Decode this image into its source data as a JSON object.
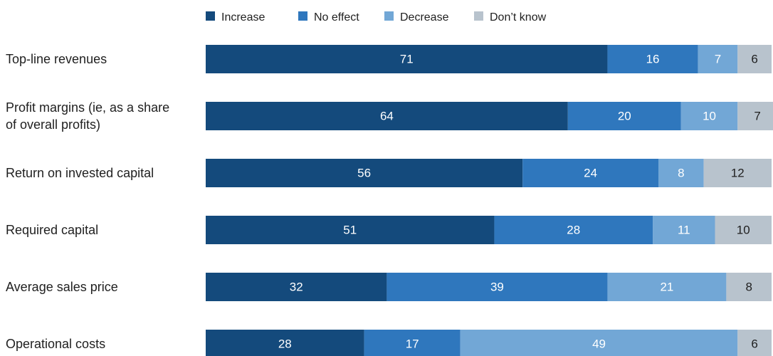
{
  "chart_data": {
    "type": "bar",
    "orientation": "horizontal",
    "stacked": true,
    "legend_position": "top",
    "categories": [
      [
        "Top-line revenues"
      ],
      [
        "Profit margins (ie, as a share",
        "of overall profits)"
      ],
      [
        "Return on invested capital"
      ],
      [
        "Required capital"
      ],
      [
        "Average sales price"
      ],
      [
        "Operational costs"
      ]
    ],
    "series": [
      {
        "name": "Increase",
        "color": "#144a7c",
        "label_color": "#ffffff",
        "values": [
          71,
          64,
          56,
          51,
          32,
          28
        ]
      },
      {
        "name": "No effect",
        "color": "#2f77bd",
        "label_color": "#ffffff",
        "values": [
          16,
          20,
          24,
          28,
          39,
          17
        ]
      },
      {
        "name": "Decrease",
        "color": "#72a7d6",
        "label_color": "#ffffff",
        "values": [
          7,
          10,
          8,
          11,
          21,
          49
        ]
      },
      {
        "name": "Don’t know",
        "color": "#b8c3cd",
        "label_color": "#1f1f1f",
        "values": [
          6,
          7,
          12,
          10,
          8,
          6
        ]
      }
    ],
    "xlim": [
      0,
      100
    ]
  }
}
